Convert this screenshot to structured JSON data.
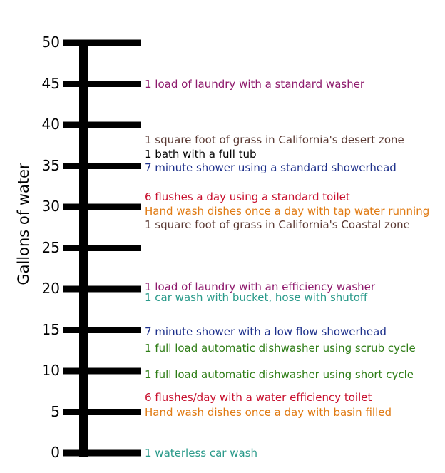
{
  "axis_title": "Gallons of water",
  "ticks": [
    0,
    5,
    10,
    15,
    20,
    25,
    30,
    35,
    40,
    45,
    50
  ],
  "activities": [
    {
      "gallons": 45,
      "text": "1 load of laundry with a standard washer",
      "color": "#8e1a6c"
    },
    {
      "gallons": 38.2,
      "text": "1 square foot of grass in California's desert zone",
      "color": "#5b3a34"
    },
    {
      "gallons": 36.4,
      "text": "1 bath with a full tub",
      "color": "#000000"
    },
    {
      "gallons": 34.8,
      "text": "7 minute shower using a standard showerhead",
      "color": "#1c2f8a"
    },
    {
      "gallons": 31.2,
      "text": "6 flushes a day using a standard toilet",
      "color": "#c8102e"
    },
    {
      "gallons": 29.5,
      "text": "Hand wash dishes once a day with tap water running",
      "color": "#e07a12"
    },
    {
      "gallons": 27.8,
      "text": "1 square foot of grass in California's Coastal zone",
      "color": "#5b3a34"
    },
    {
      "gallons": 20.3,
      "text": "1 load of laundry with an efficiency washer",
      "color": "#8e1a6c"
    },
    {
      "gallons": 19.0,
      "text": "1 car wash with bucket, hose with shutoff",
      "color": "#2a9a8a"
    },
    {
      "gallons": 14.8,
      "text": "7 minute shower with a low flow showerhead",
      "color": "#1c2f8a"
    },
    {
      "gallons": 12.8,
      "text": "1 full load automatic dishwasher using  scrub cycle",
      "color": "#2e7d16"
    },
    {
      "gallons": 9.6,
      "text": "1 full load automatic dishwasher using short cycle",
      "color": "#2e7d16"
    },
    {
      "gallons": 6.8,
      "text": "6 flushes/day with a water efficiency toilet",
      "color": "#c8102e"
    },
    {
      "gallons": 5.0,
      "text": "Hand wash dishes once a day with basin filled",
      "color": "#e07a12"
    },
    {
      "gallons": 0,
      "text": "1 waterless car wash",
      "color": "#2a9a8a"
    }
  ]
}
